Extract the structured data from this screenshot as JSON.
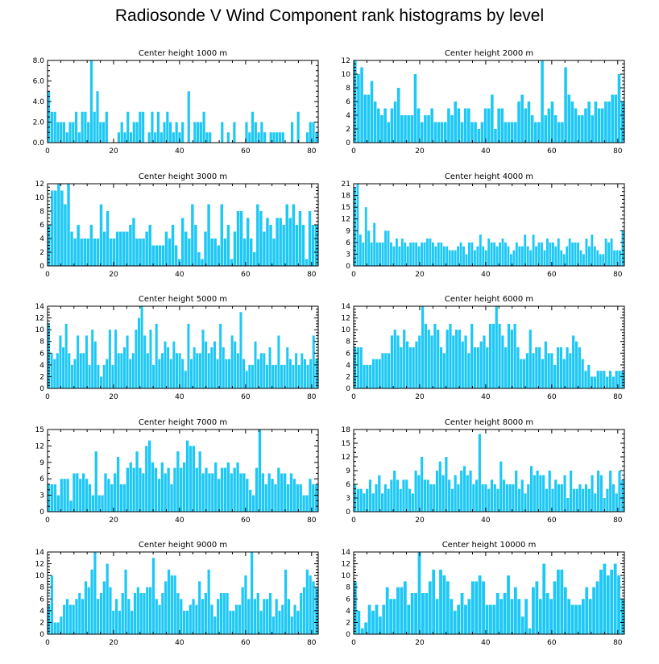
{
  "title": "Radiosonde V Wind Component rank histograms by level",
  "bar_color": "#1ec8f5",
  "axis_color": "#000000",
  "chart_data": [
    {
      "type": "bar",
      "title": "Center height 1000 m",
      "xlim": [
        0,
        82
      ],
      "ylim": [
        0,
        8
      ],
      "xticks": [
        0,
        20,
        40,
        60,
        80
      ],
      "yticks": [
        0,
        2,
        4,
        6,
        8
      ],
      "ytick_labels": [
        "0.0",
        "2.0",
        "4.0",
        "6.0",
        "8.0"
      ],
      "values": [
        5,
        3,
        3,
        2,
        2,
        2,
        1,
        2,
        2,
        3,
        1,
        3,
        3,
        2,
        8,
        3,
        5,
        2,
        2,
        3,
        0,
        0,
        0,
        1,
        2,
        1,
        3,
        1,
        2,
        2,
        3,
        3,
        0,
        1,
        3,
        1,
        3,
        1,
        2,
        3,
        2,
        1,
        2,
        1,
        2,
        0,
        5,
        0,
        2,
        2,
        2,
        3,
        1,
        1,
        0,
        0,
        0,
        2,
        0,
        1,
        0,
        2,
        0,
        0,
        0,
        2,
        1,
        3,
        2,
        1,
        2,
        1,
        0,
        1,
        1,
        1,
        1,
        1,
        0,
        0,
        2,
        0,
        3,
        0,
        0,
        1,
        2,
        2,
        1
      ]
    },
    {
      "type": "bar",
      "title": "Center height 2000 m",
      "xlim": [
        0,
        82
      ],
      "ylim": [
        0,
        12
      ],
      "xticks": [
        0,
        20,
        40,
        60,
        80
      ],
      "yticks": [
        0,
        2,
        4,
        6,
        8,
        10,
        12
      ],
      "ytick_labels": [
        "0",
        "2",
        "4",
        "6",
        "8",
        "10",
        "12"
      ],
      "values": [
        12,
        10,
        11,
        7,
        7,
        9,
        6,
        5,
        4,
        5,
        3,
        5,
        6,
        8,
        4,
        4,
        4,
        4,
        10,
        5,
        3,
        4,
        4,
        5,
        3,
        3,
        3,
        3,
        5,
        4,
        6,
        5,
        3,
        5,
        5,
        3,
        3,
        2,
        3,
        5,
        5,
        7,
        2,
        5,
        5,
        3,
        3,
        3,
        3,
        6,
        7,
        5,
        6,
        4,
        3,
        3,
        12,
        4,
        5,
        6,
        4,
        3,
        3,
        11,
        7,
        6,
        5,
        4,
        4,
        5,
        6,
        4,
        6,
        5,
        5,
        6,
        6,
        7,
        7,
        10,
        6
      ]
    },
    {
      "type": "bar",
      "title": "Center height 3000 m",
      "xlim": [
        0,
        82
      ],
      "ylim": [
        0,
        12
      ],
      "xticks": [
        0,
        20,
        40,
        60,
        80
      ],
      "yticks": [
        0,
        2,
        4,
        6,
        8,
        10,
        12
      ],
      "ytick_labels": [
        "0",
        "2",
        "4",
        "6",
        "8",
        "10",
        "12"
      ],
      "values": [
        6,
        11,
        11,
        12,
        11,
        9,
        12,
        5,
        4,
        6,
        4,
        4,
        4,
        6,
        4,
        4,
        9,
        5,
        8,
        4,
        4,
        5,
        5,
        5,
        5,
        6,
        7,
        4,
        4,
        4,
        5,
        6,
        3,
        3,
        3,
        3,
        5,
        4,
        6,
        3,
        1,
        7,
        5,
        4,
        9,
        6,
        2,
        1,
        5,
        9,
        4,
        4,
        3,
        9,
        4,
        6,
        1,
        5,
        8,
        8,
        4,
        7,
        4,
        2,
        9,
        8,
        5,
        7,
        6,
        4,
        7,
        7,
        6,
        9,
        7,
        9,
        6,
        8,
        6,
        1,
        8,
        6,
        6
      ]
    },
    {
      "type": "bar",
      "title": "Center height 4000 m",
      "xlim": [
        0,
        82
      ],
      "ylim": [
        0,
        21
      ],
      "xticks": [
        0,
        20,
        40,
        60,
        80
      ],
      "yticks": [
        0,
        3,
        6,
        9,
        12,
        15,
        18,
        21
      ],
      "ytick_labels": [
        "0",
        "3",
        "6",
        "9",
        "12",
        "15",
        "18",
        "21"
      ],
      "values": [
        20,
        21,
        8,
        6,
        15,
        9,
        6,
        11,
        6,
        6,
        6,
        9,
        9,
        6,
        5,
        7,
        5,
        7,
        6,
        5,
        6,
        6,
        6,
        5,
        6,
        6,
        7,
        7,
        6,
        5,
        6,
        6,
        5,
        5,
        4,
        4,
        4,
        5,
        6,
        5,
        3,
        6,
        6,
        4,
        5,
        8,
        5,
        4,
        7,
        6,
        6,
        5,
        6,
        7,
        6,
        5,
        3,
        4,
        6,
        5,
        5,
        8,
        5,
        4,
        8,
        5,
        6,
        6,
        4,
        7,
        6,
        6,
        5,
        7,
        4,
        3,
        5,
        7,
        6,
        6,
        6,
        4,
        3,
        7,
        5,
        8,
        5,
        4,
        3,
        3,
        7,
        6,
        7,
        4,
        4,
        4,
        9
      ]
    },
    {
      "type": "bar",
      "title": "Center height 5000 m",
      "xlim": [
        0,
        82
      ],
      "ylim": [
        0,
        14
      ],
      "xticks": [
        0,
        20,
        40,
        60,
        80
      ],
      "yticks": [
        0,
        2,
        4,
        6,
        8,
        10,
        12,
        14
      ],
      "ytick_labels": [
        "0",
        "2",
        "4",
        "6",
        "8",
        "10",
        "12",
        "14"
      ],
      "values": [
        11,
        6,
        5,
        6,
        9,
        7,
        11,
        6,
        4,
        5,
        9,
        6,
        6,
        9,
        4,
        10,
        8,
        4,
        2,
        4,
        5,
        10,
        4,
        10,
        6,
        6,
        7,
        9,
        5,
        6,
        10,
        12,
        14,
        9,
        6,
        10,
        4,
        11,
        5,
        6,
        8,
        7,
        5,
        8,
        6,
        6,
        5,
        3,
        11,
        5,
        7,
        6,
        6,
        10,
        8,
        6,
        7,
        8,
        5,
        11,
        7,
        5,
        5,
        9,
        8,
        6,
        13,
        5,
        3,
        4,
        4,
        8,
        5,
        6,
        6,
        4,
        7,
        4,
        4,
        9,
        4,
        4,
        7,
        5,
        4,
        6,
        4,
        6,
        5,
        4,
        5,
        9,
        5
      ]
    },
    {
      "type": "bar",
      "title": "Center height 6000 m",
      "xlim": [
        0,
        82
      ],
      "ylim": [
        0,
        14
      ],
      "xticks": [
        0,
        20,
        40,
        60,
        80
      ],
      "yticks": [
        0,
        2,
        4,
        6,
        8,
        10,
        12,
        14
      ],
      "ytick_labels": [
        "0",
        "2",
        "4",
        "6",
        "8",
        "10",
        "12",
        "14"
      ],
      "values": [
        7,
        7,
        7,
        4,
        4,
        4,
        5,
        5,
        5,
        6,
        6,
        6,
        9,
        10,
        9,
        7,
        10,
        8,
        7,
        7,
        8,
        9,
        14,
        11,
        10,
        9,
        11,
        10,
        7,
        6,
        10,
        11,
        9,
        10,
        10,
        8,
        9,
        6,
        11,
        7,
        7,
        8,
        9,
        7,
        11,
        11,
        14,
        11,
        9,
        7,
        11,
        10,
        11,
        7,
        5,
        5,
        6,
        10,
        6,
        7,
        7,
        5,
        8,
        6,
        6,
        4,
        7,
        7,
        5,
        7,
        6,
        9,
        8,
        7,
        5,
        3,
        4,
        2,
        2,
        3,
        3,
        3,
        2,
        3,
        2,
        3,
        3,
        3
      ]
    },
    {
      "type": "bar",
      "title": "Center height 7000 m",
      "xlim": [
        0,
        82
      ],
      "ylim": [
        0,
        15
      ],
      "xticks": [
        0,
        20,
        40,
        60,
        80
      ],
      "yticks": [
        0,
        3,
        6,
        9,
        12,
        15
      ],
      "ytick_labels": [
        "0",
        "3",
        "6",
        "9",
        "12",
        "15"
      ],
      "values": [
        5,
        5,
        5,
        3,
        6,
        6,
        6,
        2,
        7,
        7,
        6,
        7,
        6,
        5,
        3,
        11,
        3,
        3,
        7,
        6,
        5,
        7,
        10,
        5,
        5,
        8,
        9,
        8,
        11,
        8,
        7,
        12,
        13,
        9,
        8,
        6,
        9,
        7,
        8,
        5,
        8,
        11,
        8,
        9,
        13,
        12,
        12,
        8,
        11,
        7,
        8,
        7,
        7,
        9,
        6,
        8,
        8,
        9,
        7,
        8,
        9,
        7,
        7,
        6,
        4,
        3,
        8,
        15,
        7,
        5,
        7,
        6,
        5,
        8,
        7,
        7,
        5,
        7,
        6,
        5,
        5,
        3,
        3,
        6,
        5,
        5
      ]
    },
    {
      "type": "bar",
      "title": "Center height 8000 m",
      "xlim": [
        0,
        82
      ],
      "ylim": [
        0,
        18
      ],
      "xticks": [
        0,
        20,
        40,
        60,
        80
      ],
      "yticks": [
        0,
        3,
        6,
        9,
        12,
        15,
        18
      ],
      "ytick_labels": [
        "0",
        "3",
        "6",
        "9",
        "12",
        "15",
        "18"
      ],
      "values": [
        6,
        5,
        5,
        4,
        5,
        7,
        4,
        6,
        8,
        4,
        6,
        5,
        7,
        9,
        7,
        5,
        7,
        7,
        5,
        4,
        9,
        8,
        12,
        7,
        7,
        6,
        6,
        9,
        11,
        8,
        12,
        7,
        5,
        8,
        6,
        9,
        10,
        8,
        9,
        6,
        7,
        17,
        6,
        6,
        5,
        7,
        6,
        5,
        11,
        7,
        6,
        6,
        6,
        9,
        5,
        7,
        4,
        6,
        10,
        8,
        9,
        8,
        8,
        5,
        9,
        5,
        7,
        6,
        6,
        8,
        3,
        9,
        5,
        5,
        6,
        5,
        6,
        5,
        8,
        4,
        9,
        8,
        3,
        5,
        9,
        6,
        4,
        9,
        7
      ]
    },
    {
      "type": "bar",
      "title": "Center height 9000 m",
      "xlim": [
        0,
        82
      ],
      "ylim": [
        0,
        14
      ],
      "xticks": [
        0,
        20,
        40,
        60,
        80
      ],
      "yticks": [
        0,
        2,
        4,
        6,
        8,
        10,
        12,
        14
      ],
      "ytick_labels": [
        "0",
        "2",
        "4",
        "6",
        "8",
        "10",
        "12",
        "14"
      ],
      "values": [
        5,
        10,
        2,
        2,
        3,
        5,
        6,
        5,
        5,
        6,
        7,
        6,
        9,
        8,
        11,
        14,
        6,
        7,
        9,
        12,
        8,
        4,
        6,
        4,
        7,
        11,
        6,
        4,
        7,
        8,
        7,
        7,
        8,
        8,
        13,
        6,
        5,
        7,
        9,
        11,
        10,
        10,
        7,
        6,
        4,
        4,
        5,
        6,
        5,
        9,
        6,
        7,
        11,
        5,
        3,
        6,
        7,
        7,
        7,
        4,
        4,
        5,
        5,
        8,
        10,
        6,
        14,
        6,
        7,
        4,
        6,
        6,
        7,
        3,
        6,
        4,
        5,
        11,
        6,
        3,
        5,
        4,
        7,
        8,
        11,
        10,
        9,
        8
      ]
    },
    {
      "type": "bar",
      "title": "Center height 10000 m",
      "xlim": [
        0,
        82
      ],
      "ylim": [
        0,
        14
      ],
      "xticks": [
        0,
        20,
        40,
        60,
        80
      ],
      "yticks": [
        0,
        2,
        4,
        6,
        8,
        10,
        12,
        14
      ],
      "ytick_labels": [
        "0",
        "2",
        "4",
        "6",
        "8",
        "10",
        "12",
        "14"
      ],
      "values": [
        9,
        4,
        1,
        2,
        5,
        4,
        5,
        3,
        5,
        8,
        6,
        6,
        8,
        8,
        9,
        5,
        7,
        7,
        14,
        7,
        7,
        9,
        11,
        6,
        11,
        10,
        9,
        6,
        4,
        5,
        7,
        5,
        6,
        9,
        9,
        10,
        9,
        5,
        5,
        5,
        7,
        6,
        7,
        10,
        6,
        8,
        6,
        3,
        6,
        1,
        8,
        9,
        6,
        12,
        7,
        6,
        9,
        11,
        11,
        8,
        6,
        5,
        5,
        5,
        6,
        8,
        6,
        8,
        9,
        11,
        12,
        10,
        11,
        12,
        10,
        6
      ]
    }
  ]
}
